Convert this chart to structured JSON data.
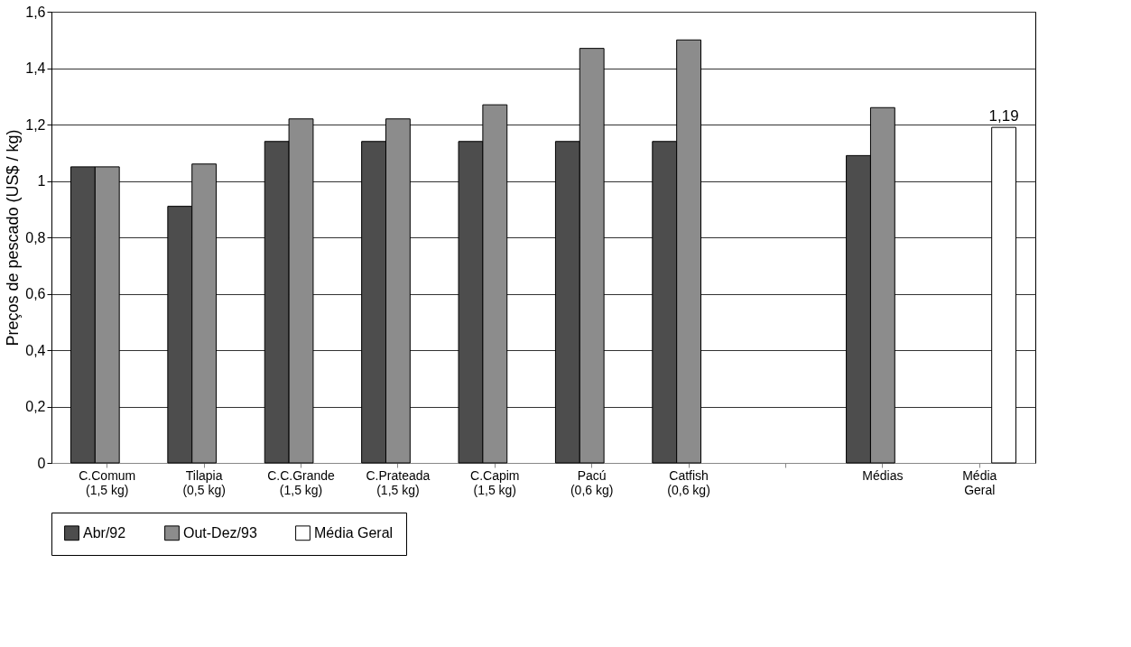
{
  "chart_data": {
    "type": "bar",
    "ylabel": "Preços de pescado (US$ / kg)",
    "categories": [
      "C.Comum\n(1,5 kg)",
      "Tilapia\n(0,5 kg)",
      "C.C.Grande\n(1,5 kg)",
      "C.Prateada\n(1,5 kg)",
      "C.Capim\n(1,5 kg)",
      "Pacú\n(0,6 kg)",
      "Catfish\n(0,6 kg)",
      null,
      "Médias",
      "Média\nGeral"
    ],
    "series": [
      {
        "name": "Abr/92",
        "color": "#4d4d4d",
        "values": [
          1.05,
          0.91,
          1.14,
          1.14,
          1.14,
          1.14,
          1.14,
          null,
          1.09,
          null
        ]
      },
      {
        "name": "Out-Dez/93",
        "color": "#8c8c8c",
        "values": [
          1.05,
          1.06,
          1.22,
          1.22,
          1.27,
          1.47,
          1.5,
          null,
          1.26,
          null
        ]
      },
      {
        "name": "Média Geral",
        "color": "#ffffff",
        "values": [
          null,
          null,
          null,
          null,
          null,
          null,
          null,
          null,
          null,
          1.19
        ],
        "value_labels": [
          null,
          null,
          null,
          null,
          null,
          null,
          null,
          null,
          null,
          "1,19"
        ]
      }
    ],
    "ylim": [
      0,
      1.6
    ],
    "yticks": [
      0,
      {
        "value": 0.2,
        "label": "0,2"
      },
      {
        "value": 0.4,
        "label": "0,4"
      },
      {
        "value": 0.6,
        "label": "0,6"
      },
      {
        "value": 0.8,
        "label": "0,8"
      },
      1,
      {
        "value": 1.2,
        "label": "1,2"
      },
      {
        "value": 1.4,
        "label": "1,4"
      },
      {
        "value": 1.6,
        "label": "1,6"
      }
    ],
    "grid": "y",
    "legend": "bottom"
  }
}
